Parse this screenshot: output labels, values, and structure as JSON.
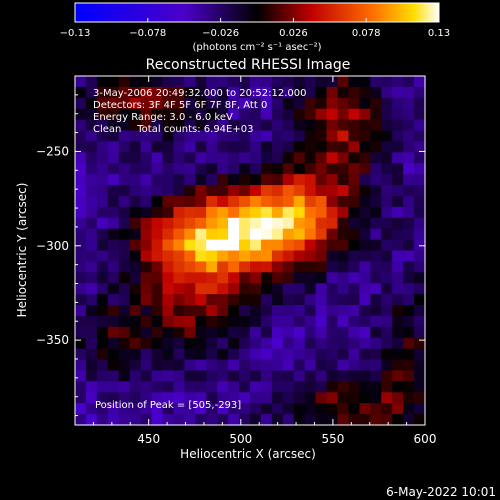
{
  "chart_data": {
    "type": "heatmap",
    "title": "Reconstructed RHESSI Image",
    "xlabel": "Heliocentric X (arcsec)",
    "ylabel": "Heliocentric Y (arcsec)",
    "xlim": [
      410,
      600
    ],
    "ylim": [
      -395,
      -210
    ],
    "x_ticks": [
      450,
      500,
      550,
      600
    ],
    "y_ticks": [
      -250,
      -300,
      -350
    ],
    "colorbar": {
      "label": "(photons cm⁻² s⁻¹ asec⁻²)",
      "range": [
        -0.13,
        0.13
      ],
      "ticks": [
        "−0.13",
        "−0.078",
        "−0.026",
        "0.026",
        "0.078",
        "0.13"
      ],
      "tick_values": [
        -0.13,
        -0.078,
        -0.026,
        0.026,
        0.078,
        0.13
      ]
    },
    "info_lines": [
      "3-May-2006 20:49:32.000 to 20:52:12.000",
      "Detectors: 3F 4F 5F 6F 7F 8F, Att 0",
      "Energy Range: 3.0 - 6.0 keV",
      "Clean     Total counts: 6.94E+03"
    ],
    "peak_label": "Position of Peak = [505,-293]",
    "peak": {
      "x": 505,
      "y": -293,
      "value": 0.13
    },
    "sources": [
      {
        "x": 505,
        "y": -293,
        "amp": 0.13,
        "sx": 26,
        "sy": 16
      },
      {
        "x": 470,
        "y": -300,
        "amp": 0.078,
        "sx": 22,
        "sy": 18
      },
      {
        "x": 535,
        "y": -280,
        "amp": 0.075,
        "sx": 20,
        "sy": 16
      },
      {
        "x": 555,
        "y": -235,
        "amp": 0.07,
        "sx": 18,
        "sy": 22
      },
      {
        "x": 445,
        "y": -225,
        "amp": 0.06,
        "sx": 28,
        "sy": 12
      },
      {
        "x": 475,
        "y": -335,
        "amp": 0.05,
        "sx": 22,
        "sy": 18
      },
      {
        "x": 555,
        "y": -385,
        "amp": 0.055,
        "sx": 28,
        "sy": 12
      },
      {
        "x": 590,
        "y": -355,
        "amp": 0.04,
        "sx": 12,
        "sy": 30
      },
      {
        "x": 430,
        "y": -350,
        "amp": 0.04,
        "sx": 16,
        "sy": 16
      }
    ]
  },
  "footer": {
    "date_stamp": "6-May-2022 10:01"
  }
}
